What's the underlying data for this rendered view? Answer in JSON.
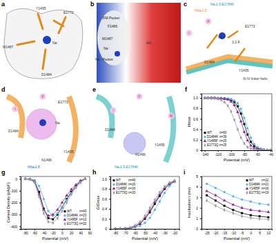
{
  "panels": [
    {
      "label": "a",
      "texts": [
        "Y1495",
        "E1773",
        "M1487",
        "Na⁺",
        "D1484"
      ]
    },
    {
      "label": "b",
      "texts": [
        "IFM Pocket",
        "F1486",
        "M1487",
        "Na⁺",
        "Na⁺ Pocket",
        "AG"
      ]
    },
    {
      "label": "c",
      "texts": [
        "Naᵥ1.5-E1784K",
        "hNaᵥ1.5",
        "I",
        "F",
        "E1773",
        "3.2 Å",
        "Na⁺",
        "D1484",
        "Y1495",
        "III-IV linker helix"
      ]
    },
    {
      "label": "d",
      "texts": [
        "F",
        "I",
        "E1773",
        "Na⁺",
        "D1484",
        "N1496",
        "Y1495",
        "hNaᵥ1.5"
      ]
    },
    {
      "label": "e",
      "texts": [
        "F",
        "I",
        "M",
        "D1484",
        "Y1495",
        "N1496",
        "Naᵥ1.5-E1784K"
      ]
    }
  ],
  "chart_data": [
    {
      "panel_label": "f",
      "type": "line",
      "x_label": "Potential (mV)",
      "y_label": "I/Imax",
      "legend": "bottom-left",
      "x": [
        -140,
        -135,
        -130,
        -125,
        -120,
        -115,
        -110,
        -105,
        -100,
        -95,
        -90,
        -85,
        -80,
        -75,
        -70,
        -65,
        -60,
        -55,
        -50,
        -45,
        -40
      ],
      "xlim": [
        -145,
        -38
      ],
      "xticks": [
        -140,
        -120,
        -100,
        -80,
        -60,
        -40
      ],
      "ylim": [
        0,
        1.08
      ],
      "yticks": [
        0,
        0.2,
        0.4,
        0.6,
        0.8,
        {
          "value": 1,
          "label": "1.0"
        }
      ],
      "series": [
        {
          "name": "WT",
          "n_label": "n=60",
          "color": "#000000",
          "marker": "square",
          "line_style": "solid",
          "values": [
            1,
            1,
            1,
            1,
            0.99,
            0.99,
            0.99,
            0.98,
            0.96,
            0.92,
            0.84,
            0.7,
            0.5,
            0.3,
            0.16,
            0.08,
            0.04,
            0.02,
            0.01,
            0,
            0
          ]
        },
        {
          "name": "D1484K",
          "n_label": "n=39",
          "color": "#5ab4e5",
          "marker": "circle",
          "line_style": "solid",
          "values": [
            1,
            1,
            1,
            1,
            1,
            1,
            0.99,
            0.99,
            0.98,
            0.95,
            0.9,
            0.79,
            0.62,
            0.42,
            0.24,
            0.12,
            0.06,
            0.03,
            0.01,
            0,
            0
          ]
        },
        {
          "name": "Y1495F",
          "n_label": "n=25",
          "color": "#8e2a8e",
          "marker": "triangle",
          "line_style": "solid",
          "values": [
            1,
            1,
            1,
            1,
            0.99,
            0.99,
            0.98,
            0.97,
            0.93,
            0.86,
            0.73,
            0.55,
            0.35,
            0.19,
            0.09,
            0.04,
            0.02,
            0.01,
            0,
            0,
            0
          ]
        },
        {
          "name": "E1773Q",
          "n_label": "n=25",
          "color": "#a0a0a0",
          "marker": "diamond",
          "line_style": "solid",
          "values": [
            1,
            1,
            0.99,
            0.99,
            0.98,
            0.96,
            0.92,
            0.85,
            0.74,
            0.58,
            0.4,
            0.24,
            0.13,
            0.06,
            0.03,
            0.01,
            0,
            0,
            0,
            0,
            0
          ]
        }
      ]
    },
    {
      "panel_label": "g",
      "type": "line",
      "x_label": "Potential (mV)",
      "y_label": "Current Density (pA/pF)",
      "legend": "bottom-right",
      "x": [
        -80,
        -70,
        -60,
        -50,
        -40,
        -30,
        -20,
        -10,
        0,
        10,
        20,
        30,
        40,
        50
      ],
      "xlim": [
        -90,
        60
      ],
      "xticks": [
        -80,
        -60,
        -40,
        -20,
        0,
        20,
        40,
        60
      ],
      "ylim": [
        -420,
        20
      ],
      "yticks": [
        -400,
        -300,
        -200,
        -100,
        0
      ],
      "series": [
        {
          "name": "WT",
          "n_label": "n=43",
          "color": "#000000",
          "marker": "square",
          "line_style": "solid",
          "values": [
            0,
            -2,
            -20,
            -110,
            -250,
            -330,
            -340,
            -300,
            -240,
            -170,
            -110,
            -60,
            -20,
            0
          ]
        },
        {
          "name": "D1484K",
          "n_label": "n=23",
          "color": "#5ab4e5",
          "marker": "circle",
          "line_style": "solid",
          "values": [
            0,
            -2,
            -10,
            -60,
            -170,
            -270,
            -310,
            -290,
            -240,
            -180,
            -120,
            -70,
            -30,
            0
          ]
        },
        {
          "name": "Y1495F",
          "n_label": "n=13",
          "color": "#8e2a8e",
          "marker": "triangle",
          "line_style": "solid",
          "values": [
            0,
            -3,
            -25,
            -130,
            -260,
            -310,
            -300,
            -260,
            -200,
            -140,
            -90,
            -50,
            -15,
            0
          ]
        },
        {
          "name": "E1773Q",
          "n_label": "n=22",
          "color": "#a0a0a0",
          "marker": "diamond",
          "line_style": "solid",
          "values": [
            0,
            -3,
            -30,
            -150,
            -290,
            -360,
            -370,
            -330,
            -270,
            -200,
            -130,
            -75,
            -30,
            0
          ]
        }
      ]
    },
    {
      "panel_label": "h",
      "type": "line",
      "x_label": "Potential (mV)",
      "y_label": "G/Gmax",
      "legend": "top-left",
      "x": [
        -80,
        -75,
        -70,
        -65,
        -60,
        -55,
        -50,
        -45,
        -40,
        -35,
        -30,
        -25,
        -20
      ],
      "xlim": [
        -85,
        -15
      ],
      "xticks": [
        -80,
        -70,
        -60,
        -50,
        -40,
        -30,
        -20
      ],
      "ylim": [
        0,
        1.05
      ],
      "yticks": [
        0,
        0.2,
        0.4,
        0.6,
        0.8,
        {
          "value": 1,
          "label": "1.0"
        }
      ],
      "series": [
        {
          "name": "WT",
          "n_label": "n=40",
          "color": "#000000",
          "marker": "square",
          "line_style": "solid",
          "values": [
            0,
            0,
            0.01,
            0.02,
            0.05,
            0.1,
            0.2,
            0.33,
            0.5,
            0.66,
            0.8,
            0.9,
            0.95
          ]
        },
        {
          "name": "D1484K",
          "n_label": "n=20",
          "color": "#5ab4e5",
          "marker": "circle",
          "line_style": "solid",
          "values": [
            0,
            0,
            0,
            0.01,
            0.03,
            0.06,
            0.12,
            0.22,
            0.38,
            0.55,
            0.72,
            0.86,
            0.94
          ]
        },
        {
          "name": "Y1495F",
          "n_label": "n=16",
          "color": "#8e2a8e",
          "marker": "triangle",
          "line_style": "solid",
          "values": [
            0,
            0,
            0.01,
            0.02,
            0.05,
            0.11,
            0.22,
            0.36,
            0.53,
            0.69,
            0.82,
            0.91,
            0.96
          ]
        },
        {
          "name": "E1773Q",
          "n_label": "n=20",
          "color": "#a0a0a0",
          "marker": "diamond",
          "line_style": "solid",
          "values": [
            0,
            0.01,
            0.01,
            0.03,
            0.07,
            0.14,
            0.26,
            0.42,
            0.58,
            0.73,
            0.85,
            0.93,
            0.97
          ]
        }
      ]
    },
    {
      "panel_label": "i",
      "type": "line",
      "x_label": "Potential (mV)",
      "y_label": "Inactivation τ (ms)",
      "legend": "top-right",
      "x": [
        -25,
        -20,
        -15,
        -10,
        -5,
        0,
        5,
        10
      ],
      "xlim": [
        -28,
        12
      ],
      "xticks": [
        -25,
        -20,
        -15,
        -10,
        -5,
        0,
        5,
        10
      ],
      "ylim": [
        0,
        5
      ],
      "yticks": [
        0,
        1,
        2,
        3,
        4,
        5
      ],
      "series": [
        {
          "name": "WT",
          "n_label": "n=22",
          "color": "#000000",
          "marker": "square",
          "line_style": "solid",
          "values": [
            3.2,
            2.7,
            2.2,
            1.8,
            1.5,
            1.3,
            1.2,
            1.1
          ]
        },
        {
          "name": "D1484K",
          "n_label": "n=21",
          "color": "#5ab4e5",
          "marker": "circle",
          "line_style": "solid",
          "values": [
            4.3,
            3.9,
            3.5,
            3.1,
            2.8,
            2.6,
            2.4,
            2.3
          ]
        },
        {
          "name": "Y1495F",
          "n_label": "n=16",
          "color": "#8e2a8e",
          "marker": "triangle",
          "line_style": "solid",
          "values": [
            3.6,
            3.2,
            2.7,
            2.3,
            2.0,
            1.8,
            1.7,
            1.6
          ]
        },
        {
          "name": "E1773Q",
          "n_label": "n=19",
          "color": "#a0a0a0",
          "marker": "diamond",
          "line_style": "solid",
          "values": [
            2.7,
            2.2,
            1.8,
            1.5,
            1.2,
            1.05,
            0.95,
            0.9
          ]
        }
      ]
    }
  ]
}
